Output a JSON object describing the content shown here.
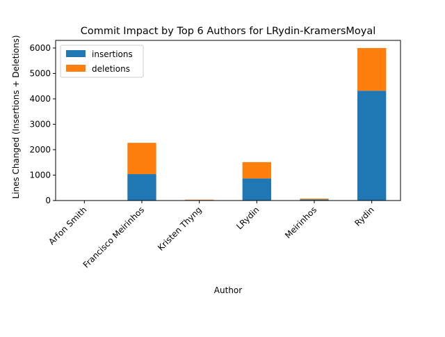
{
  "chart_data": {
    "type": "bar",
    "stacked": true,
    "title": "Commit Impact by Top 6 Authors for LRydin-KramersMoyal",
    "xlabel": "Author",
    "ylabel": "Lines Changed (Insertions + Deletions)",
    "categories": [
      "Arfon Smith",
      "Francisco Meirinhos",
      "Kristen Thyng",
      "LRydin",
      "Meirinhos",
      "Rydin"
    ],
    "series": [
      {
        "name": "insertions",
        "color": "#1f77b4",
        "values": [
          2,
          1040,
          20,
          870,
          40,
          4320
        ]
      },
      {
        "name": "deletions",
        "color": "#ff7f0e",
        "values": [
          1,
          1230,
          15,
          640,
          35,
          1680
        ]
      }
    ],
    "ylim": [
      0,
      6300
    ],
    "yticks": [
      0,
      1000,
      2000,
      3000,
      4000,
      5000,
      6000
    ],
    "ytick_labels": [
      "0",
      "1000",
      "2000",
      "3000",
      "4000",
      "5000",
      "6000"
    ],
    "grid": false,
    "legend_position": "top-left"
  }
}
